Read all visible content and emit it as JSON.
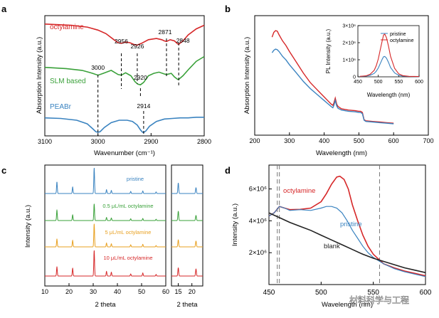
{
  "watermark": "材料科学与工程",
  "chart_data": [
    {
      "panel": "a",
      "type": "line",
      "xlabel": "Wavenumber (cm⁻¹)",
      "ylabel": "Absorption Intensity (a.u.)",
      "xlim": [
        3100,
        2800
      ],
      "xticks": [
        3100,
        3000,
        2900,
        2800
      ],
      "series": [
        {
          "name": "octylamine",
          "color": "#d62728",
          "x": [
            3100,
            3050,
            3020,
            3000,
            2985,
            2970,
            2962,
            2956,
            2948,
            2940,
            2932,
            2926,
            2918,
            2905,
            2890,
            2880,
            2875,
            2871,
            2864,
            2856,
            2850,
            2848,
            2840,
            2830,
            2815,
            2800
          ],
          "y": [
            0.93,
            0.92,
            0.905,
            0.88,
            0.85,
            0.8,
            0.775,
            0.77,
            0.78,
            0.775,
            0.76,
            0.755,
            0.77,
            0.8,
            0.81,
            0.8,
            0.79,
            0.785,
            0.8,
            0.79,
            0.765,
            0.762,
            0.79,
            0.84,
            0.89,
            0.92
          ]
        },
        {
          "name": "SLM based",
          "color": "#3aa13a",
          "x": [
            3100,
            3060,
            3030,
            3010,
            3000,
            2990,
            2975,
            2962,
            2956,
            2948,
            2938,
            2930,
            2925,
            2920,
            2914,
            2905,
            2895,
            2885,
            2875,
            2871,
            2862,
            2856,
            2850,
            2848,
            2840,
            2828,
            2815,
            2800
          ],
          "y": [
            0.57,
            0.56,
            0.545,
            0.52,
            0.505,
            0.52,
            0.545,
            0.51,
            0.505,
            0.525,
            0.5,
            0.45,
            0.43,
            0.425,
            0.445,
            0.5,
            0.52,
            0.53,
            0.515,
            0.51,
            0.52,
            0.49,
            0.47,
            0.47,
            0.5,
            0.56,
            0.62,
            0.66
          ]
        },
        {
          "name": "PEABr",
          "color": "#3a83c0",
          "x": [
            3100,
            3070,
            3040,
            3020,
            3010,
            3004,
            3000,
            2996,
            2988,
            2975,
            2960,
            2945,
            2935,
            2926,
            2920,
            2916,
            2914,
            2910,
            2903,
            2890,
            2875,
            2860,
            2845,
            2830,
            2815,
            2800
          ],
          "y": [
            0.15,
            0.145,
            0.13,
            0.1,
            0.06,
            0.035,
            0.03,
            0.035,
            0.07,
            0.11,
            0.13,
            0.13,
            0.12,
            0.09,
            0.05,
            0.03,
            0.028,
            0.04,
            0.08,
            0.12,
            0.14,
            0.145,
            0.15,
            0.15,
            0.155,
            0.155
          ]
        }
      ],
      "annotations": [
        "3000",
        "2956",
        "2926",
        "2920",
        "2914",
        "2871",
        "2848"
      ]
    },
    {
      "panel": "b",
      "type": "line",
      "xlabel": "Wavelength (nm)",
      "ylabel": "Absorption Intensity (a.u.)",
      "xlim": [
        200,
        700
      ],
      "xticks": [
        200,
        300,
        400,
        500,
        600,
        700
      ],
      "series": [
        {
          "name": "octylamine",
          "color": "#d62728",
          "x": [
            250,
            255,
            260,
            265,
            270,
            280,
            290,
            300,
            320,
            340,
            360,
            380,
            400,
            410,
            420,
            425,
            428,
            432,
            436,
            440,
            450,
            470,
            490,
            500,
            505,
            510,
            515,
            520,
            540,
            560,
            580,
            600
          ],
          "y": [
            0.82,
            0.86,
            0.875,
            0.87,
            0.84,
            0.79,
            0.75,
            0.7,
            0.61,
            0.52,
            0.44,
            0.38,
            0.32,
            0.29,
            0.26,
            0.25,
            0.27,
            0.31,
            0.26,
            0.24,
            0.22,
            0.21,
            0.205,
            0.2,
            0.2,
            0.19,
            0.13,
            0.12,
            0.115,
            0.11,
            0.105,
            0.1
          ]
        },
        {
          "name": "pristine",
          "color": "#3a83c0",
          "x": [
            250,
            255,
            260,
            265,
            270,
            280,
            290,
            300,
            320,
            340,
            360,
            380,
            400,
            410,
            420,
            425,
            428,
            432,
            436,
            440,
            450,
            470,
            490,
            500,
            505,
            510,
            515,
            520,
            540,
            560,
            580,
            600
          ],
          "y": [
            0.69,
            0.71,
            0.72,
            0.715,
            0.7,
            0.66,
            0.63,
            0.59,
            0.52,
            0.45,
            0.39,
            0.34,
            0.29,
            0.265,
            0.24,
            0.23,
            0.25,
            0.29,
            0.245,
            0.225,
            0.21,
            0.2,
            0.195,
            0.19,
            0.19,
            0.18,
            0.125,
            0.115,
            0.11,
            0.105,
            0.1,
            0.095
          ]
        }
      ],
      "inset": {
        "xlabel": "Wavelength (nm)",
        "ylabel": "PL Intensity (a.u.)",
        "xlim": [
          450,
          600
        ],
        "ylim": [
          0,
          3000000
        ],
        "xticks": [
          450,
          500,
          550,
          600
        ],
        "yticks": [
          "0",
          "1×10⁶",
          "2×10⁶",
          "3×10⁶"
        ],
        "legend": [
          "pristine",
          "octylamine"
        ],
        "series": [
          {
            "name": "pristine",
            "color": "#3a83c0",
            "x": [
              455,
              470,
              480,
              490,
              495,
              500,
              505,
              510,
              513,
              516,
              520,
              525,
              530,
              540,
              550,
              560,
              575,
              600
            ],
            "y": [
              20000,
              40000,
              90000,
              200000,
              330000,
              520000,
              780000,
              1050000,
              1180000,
              1190000,
              1100000,
              850000,
              550000,
              230000,
              90000,
              40000,
              20000,
              10000
            ]
          },
          {
            "name": "octylamine",
            "color": "#d62728",
            "x": [
              455,
              470,
              480,
              490,
              495,
              500,
              505,
              510,
              513,
              516,
              520,
              525,
              530,
              540,
              550,
              560,
              575,
              600
            ],
            "y": [
              30000,
              60000,
              150000,
              380000,
              650000,
              1050000,
              1600000,
              2150000,
              2450000,
              2500000,
              2300000,
              1800000,
              1200000,
              500000,
              180000,
              70000,
              30000,
              15000
            ]
          }
        ]
      }
    },
    {
      "panel": "c",
      "type": "line",
      "xlabel": "2 theta",
      "ylabel": "Intensity (a.u.)",
      "xlim": [
        10,
        60
      ],
      "xticks": [
        10,
        20,
        30,
        40,
        50,
        60
      ],
      "zoom_xlim": [
        12.5,
        24
      ],
      "zoom_xticks": [
        15,
        20
      ],
      "zoom_xlabel": "2 theta",
      "series": [
        {
          "name": "pristine",
          "color": "#3a83c0",
          "peaks": [
            [
              15,
              0.45
            ],
            [
              21.5,
              0.25
            ],
            [
              30.4,
              1.0
            ],
            [
              35.5,
              0.15
            ],
            [
              37.5,
              0.12
            ],
            [
              45.5,
              0.08
            ],
            [
              50.5,
              0.1
            ],
            [
              56,
              0.06
            ]
          ]
        },
        {
          "name": "0.5 μL/mL octylamine",
          "color": "#3aa13a",
          "peaks": [
            [
              15,
              0.4
            ],
            [
              21.5,
              0.22
            ],
            [
              30.4,
              0.65
            ],
            [
              35.5,
              0.12
            ],
            [
              37.5,
              0.1
            ],
            [
              45.5,
              0.07
            ],
            [
              50.5,
              0.08
            ],
            [
              56,
              0.05
            ]
          ]
        },
        {
          "name": "5 μL/mL octylamine",
          "color": "#e8a020",
          "peaks": [
            [
              15,
              0.3
            ],
            [
              21.5,
              0.25
            ],
            [
              30.4,
              0.9
            ],
            [
              35.5,
              0.15
            ],
            [
              37.5,
              0.12
            ],
            [
              45.5,
              0.08
            ],
            [
              50.5,
              0.1
            ],
            [
              56,
              0.05
            ]
          ]
        },
        {
          "name": "10 μL/mL octylamine",
          "color": "#d62728",
          "peaks": [
            [
              15,
              0.35
            ],
            [
              21.5,
              0.3
            ],
            [
              30.4,
              1.0
            ],
            [
              35.5,
              0.18
            ],
            [
              37.5,
              0.15
            ],
            [
              45.5,
              0.08
            ],
            [
              50.5,
              0.12
            ],
            [
              56,
              0.06
            ]
          ]
        }
      ]
    },
    {
      "panel": "d",
      "type": "line",
      "xlabel": "Wavelength (nm)",
      "ylabel": "Intensity (a.u.)",
      "xlim": [
        450,
        600
      ],
      "ylim": [
        0,
        7500000
      ],
      "xticks": [
        450,
        500,
        550,
        600
      ],
      "yticks": [
        2000000,
        4000000,
        6000000
      ],
      "ytick_labels": [
        "2×10⁶",
        "4×10⁶",
        "6×10⁶"
      ],
      "series": [
        {
          "name": "octylamine",
          "color": "#d62728",
          "x": [
            450,
            455,
            460,
            465,
            470,
            480,
            490,
            500,
            505,
            510,
            515,
            518,
            522,
            526,
            530,
            535,
            540,
            545,
            550,
            560,
            570,
            580,
            590,
            600
          ],
          "y": [
            4300000,
            4500000,
            4900000,
            4800000,
            4700000,
            4720000,
            4800000,
            5200000,
            5700000,
            6300000,
            6750000,
            6800000,
            6600000,
            6000000,
            5000000,
            4000000,
            3100000,
            2400000,
            1900000,
            1300000,
            1050000,
            850000,
            700000,
            550000
          ]
        },
        {
          "name": "pristine",
          "color": "#3a83c0",
          "x": [
            450,
            455,
            460,
            465,
            470,
            480,
            490,
            500,
            505,
            510,
            515,
            520,
            525,
            530,
            535,
            540,
            545,
            550,
            560,
            570,
            580,
            590,
            600
          ],
          "y": [
            4300000,
            4500000,
            4900000,
            4800000,
            4650000,
            4700000,
            4650000,
            4800000,
            4900000,
            4900000,
            4800000,
            4500000,
            4000000,
            3400000,
            2900000,
            2400000,
            2000000,
            1700000,
            1300000,
            1000000,
            800000,
            650000,
            500000
          ]
        },
        {
          "name": "blank",
          "color": "#222222",
          "x": [
            450,
            460,
            470,
            480,
            490,
            500,
            510,
            520,
            530,
            540,
            550,
            560,
            570,
            580,
            590,
            600
          ],
          "y": [
            4500000,
            4200000,
            3900000,
            3650000,
            3400000,
            3100000,
            2800000,
            2500000,
            2200000,
            1900000,
            1650000,
            1450000,
            1250000,
            1050000,
            900000,
            750000
          ]
        }
      ],
      "vlines": [
        458,
        460,
        556
      ]
    }
  ]
}
